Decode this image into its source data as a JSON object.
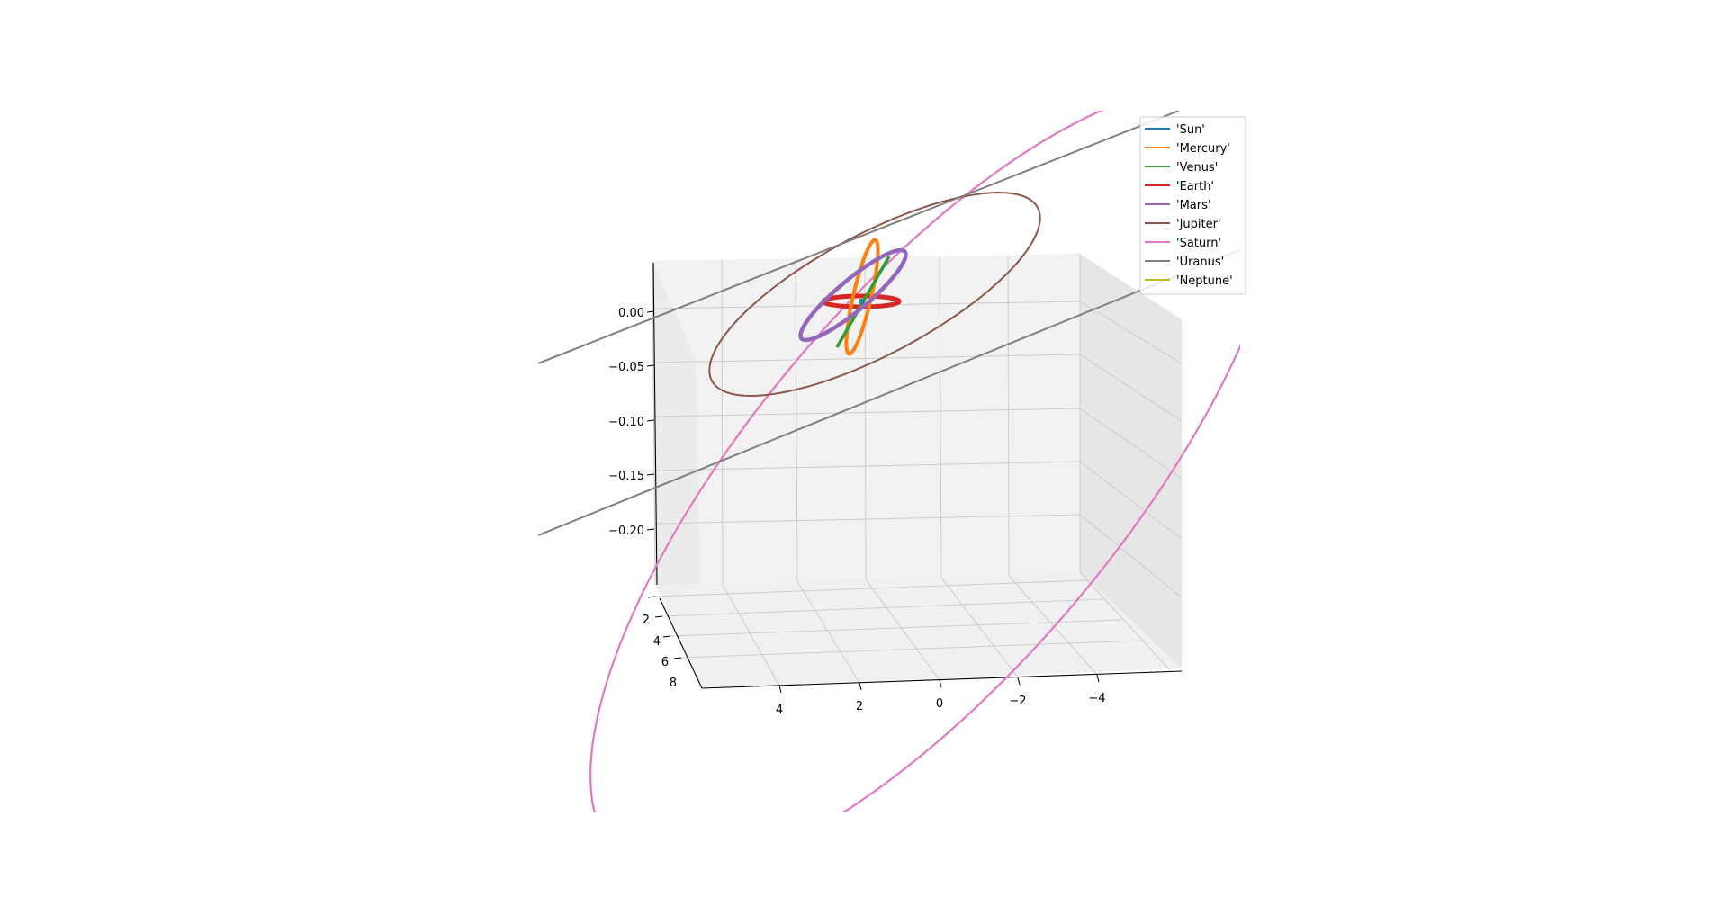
{
  "chart_data": {
    "type": "line",
    "projection": "3d",
    "title": "",
    "xlabel": "",
    "ylabel": "",
    "zlabel": "",
    "grid": true,
    "legend_position": "top-right",
    "x_ticks": [
      "4",
      "2",
      "0",
      "−2",
      "−4"
    ],
    "y_ticks": [
      "2",
      "4",
      "6",
      "8"
    ],
    "z_ticks": [
      "0.00",
      "−0.05",
      "−0.10",
      "−0.15",
      "−0.20"
    ],
    "series": [
      {
        "name": "'Sun'",
        "color": "#1f77b4"
      },
      {
        "name": "'Mercury'",
        "color": "#ff7f0e"
      },
      {
        "name": "'Venus'",
        "color": "#2ca02c"
      },
      {
        "name": "'Earth'",
        "color": "#d62728"
      },
      {
        "name": "'Mars'",
        "color": "#9467bd"
      },
      {
        "name": "'Jupiter'",
        "color": "#8c564b"
      },
      {
        "name": "'Saturn'",
        "color": "#e377c2"
      },
      {
        "name": "'Uranus'",
        "color": "#7f7f7f"
      },
      {
        "name": "'Neptune'",
        "color": "#bcbd22"
      }
    ]
  }
}
